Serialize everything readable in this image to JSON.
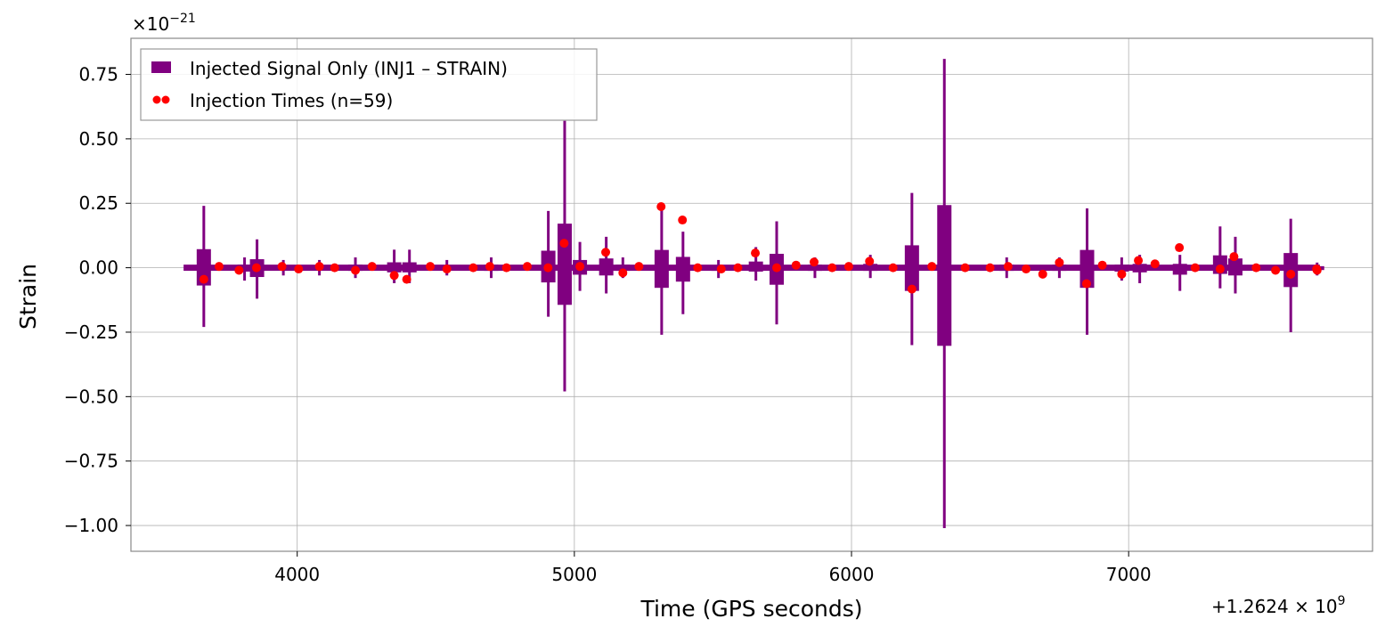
{
  "chart_data": {
    "type": "line",
    "xlabel": "Time (GPS seconds)",
    "ylabel": "Strain",
    "x_offset_label": "+1.2624 × 10",
    "x_offset_exp": "9",
    "y_scale_label": "×10",
    "y_scale_exp": "−21",
    "xlim": [
      3400,
      7880
    ],
    "ylim": [
      -1.1,
      0.89
    ],
    "x_ticks": [
      4000,
      5000,
      6000,
      7000
    ],
    "x_tick_labels": [
      "4000",
      "5000",
      "6000",
      "7000"
    ],
    "y_ticks": [
      0.75,
      0.5,
      0.25,
      0.0,
      -0.25,
      -0.5,
      -0.75,
      -1.0
    ],
    "y_tick_labels": [
      "0.75",
      "0.50",
      "0.25",
      "0.00",
      "−0.25",
      "−0.50",
      "−0.75",
      "−1.00"
    ],
    "grid": true,
    "legend_position": "top-left",
    "series": [
      {
        "name": "Injected Signal Only (INJ1 – STRAIN)",
        "color": "#800080",
        "x_range": [
          3590,
          7690
        ],
        "baseline_noise": 0.012,
        "spikes": [
          {
            "x": 3663,
            "max": 0.24,
            "min": -0.23
          },
          {
            "x": 3810,
            "max": 0.04,
            "min": -0.05
          },
          {
            "x": 3855,
            "max": 0.11,
            "min": -0.12
          },
          {
            "x": 3950,
            "max": 0.03,
            "min": -0.03
          },
          {
            "x": 4080,
            "max": 0.03,
            "min": -0.03
          },
          {
            "x": 4210,
            "max": 0.04,
            "min": -0.04
          },
          {
            "x": 4350,
            "max": 0.07,
            "min": -0.06
          },
          {
            "x": 4405,
            "max": 0.07,
            "min": -0.06
          },
          {
            "x": 4540,
            "max": 0.03,
            "min": -0.03
          },
          {
            "x": 4700,
            "max": 0.04,
            "min": -0.04
          },
          {
            "x": 4906,
            "max": 0.22,
            "min": -0.19
          },
          {
            "x": 4965,
            "max": 0.57,
            "min": -0.48
          },
          {
            "x": 5020,
            "max": 0.1,
            "min": -0.09
          },
          {
            "x": 5115,
            "max": 0.12,
            "min": -0.1
          },
          {
            "x": 5175,
            "max": 0.04,
            "min": -0.04
          },
          {
            "x": 5315,
            "max": 0.23,
            "min": -0.26
          },
          {
            "x": 5392,
            "max": 0.14,
            "min": -0.18
          },
          {
            "x": 5520,
            "max": 0.03,
            "min": -0.04
          },
          {
            "x": 5655,
            "max": 0.08,
            "min": -0.05
          },
          {
            "x": 5730,
            "max": 0.18,
            "min": -0.22
          },
          {
            "x": 5868,
            "max": 0.04,
            "min": -0.04
          },
          {
            "x": 6068,
            "max": 0.05,
            "min": -0.04
          },
          {
            "x": 6218,
            "max": 0.29,
            "min": -0.3
          },
          {
            "x": 6335,
            "max": 0.81,
            "min": -1.01
          },
          {
            "x": 6560,
            "max": 0.04,
            "min": -0.04
          },
          {
            "x": 6750,
            "max": 0.04,
            "min": -0.04
          },
          {
            "x": 6850,
            "max": 0.23,
            "min": -0.26
          },
          {
            "x": 6975,
            "max": 0.04,
            "min": -0.05
          },
          {
            "x": 7040,
            "max": 0.05,
            "min": -0.06
          },
          {
            "x": 7185,
            "max": 0.05,
            "min": -0.09
          },
          {
            "x": 7330,
            "max": 0.16,
            "min": -0.08
          },
          {
            "x": 7385,
            "max": 0.12,
            "min": -0.1
          },
          {
            "x": 7585,
            "max": 0.19,
            "min": -0.25
          },
          {
            "x": 7680,
            "max": 0.02,
            "min": -0.03
          }
        ]
      },
      {
        "name": "Injection Times (n=59)",
        "color": "#ff0000",
        "type": "scatter",
        "x": [
          3663,
          3718,
          3790,
          3853,
          3945,
          4005,
          4080,
          4135,
          4210,
          4270,
          4350,
          4395,
          4480,
          4540,
          4635,
          4695,
          4755,
          4830,
          4905,
          4963,
          5020,
          5113,
          5175,
          5233,
          5313,
          5390,
          5445,
          5530,
          5590,
          5653,
          5730,
          5800,
          5865,
          5930,
          5990,
          6065,
          6150,
          6218,
          6290,
          6410,
          6500,
          6565,
          6630,
          6690,
          6750,
          6848,
          6905,
          6975,
          7035,
          7095,
          7183,
          7240,
          7330,
          7380,
          7460,
          7530,
          7585,
          7678,
          7680
        ],
        "y": [
          -0.045,
          0.005,
          -0.01,
          0.0,
          0.005,
          -0.005,
          0.005,
          0.0,
          -0.01,
          0.005,
          -0.03,
          -0.045,
          0.005,
          -0.005,
          0.0,
          0.005,
          0.0,
          0.005,
          0.0,
          0.095,
          0.005,
          0.06,
          -0.02,
          0.005,
          0.237,
          0.185,
          0.0,
          -0.005,
          0.0,
          0.057,
          0.0,
          0.01,
          0.022,
          0.0,
          0.005,
          0.025,
          0.0,
          -0.083,
          0.005,
          0.0,
          0.0,
          0.005,
          -0.005,
          -0.025,
          0.02,
          -0.062,
          0.01,
          -0.025,
          0.028,
          0.015,
          0.078,
          0.0,
          -0.005,
          0.043,
          0.0,
          -0.01,
          -0.025,
          -0.005,
          -0.01
        ]
      }
    ]
  }
}
